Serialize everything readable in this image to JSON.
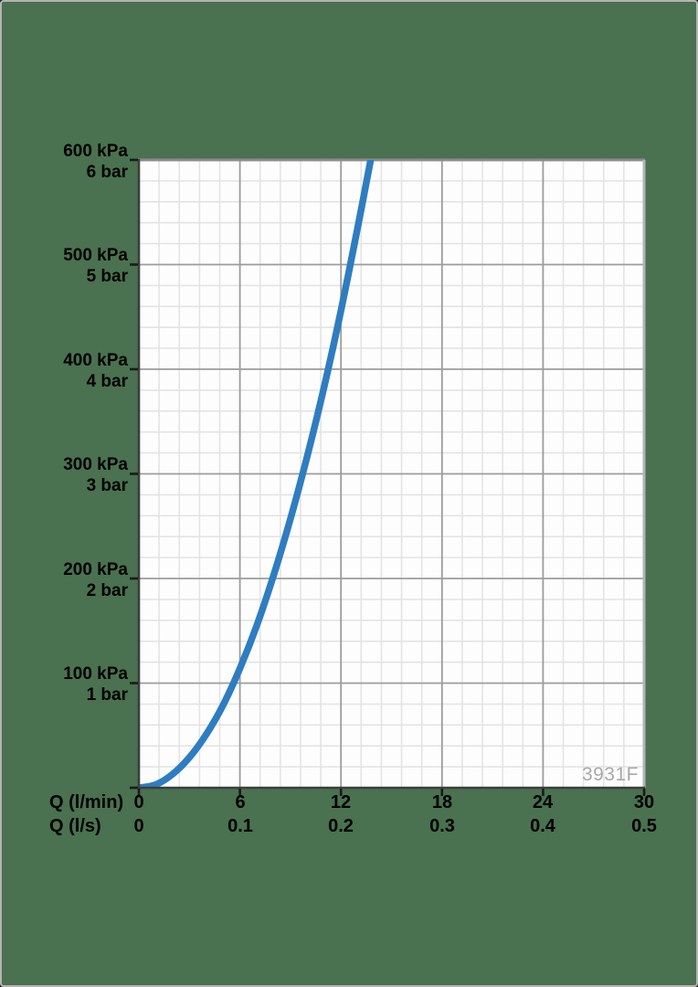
{
  "product_code": "3931F",
  "chart_data": {
    "type": "line",
    "title": "",
    "description_visible_text_only": "",
    "x_axis": {
      "row1_label": "Q (l/min)",
      "row2_label": "Q (l/s)",
      "row1_ticks": [
        "0",
        "6",
        "12",
        "18",
        "24",
        "30"
      ],
      "row2_ticks": [
        "0",
        "0.1",
        "0.2",
        "0.3",
        "0.4",
        "0.5"
      ],
      "range_lmin": [
        0,
        30
      ],
      "major_step_lmin": 6,
      "minor_per_major": 5
    },
    "y_axis": {
      "tick_labels": [
        {
          "kpa": "600 kPa",
          "bar": "6 bar"
        },
        {
          "kpa": "500 kPa",
          "bar": "5 bar"
        },
        {
          "kpa": "400 kPa",
          "bar": "4 bar"
        },
        {
          "kpa": "300 kPa",
          "bar": "3 bar"
        },
        {
          "kpa": "200 kPa",
          "bar": "2 bar"
        },
        {
          "kpa": "100 kPa",
          "bar": "1 bar"
        }
      ],
      "range_kpa": [
        0,
        600
      ],
      "major_step_kpa": 100,
      "minor_per_major": 5
    },
    "grid": {
      "minor": true,
      "major": true
    },
    "legend": {
      "visible": false
    },
    "series": [
      {
        "name": "pressure-drop-curve",
        "points_q_lmin_vs_kpa": [
          [
            0,
            0
          ],
          [
            1,
            3
          ],
          [
            2,
            13
          ],
          [
            3,
            29
          ],
          [
            4,
            51
          ],
          [
            5,
            79
          ],
          [
            6,
            114
          ],
          [
            7,
            155
          ],
          [
            8,
            203
          ],
          [
            9,
            257
          ],
          [
            10,
            317
          ],
          [
            11,
            383
          ],
          [
            12,
            456
          ],
          [
            13,
            536
          ],
          [
            13.8,
            603
          ]
        ]
      }
    ],
    "colors": {
      "curve": "#2e7dc1",
      "background": "#4a7150",
      "plot_bg": "#fdfdfd",
      "major_grid": "#9c9c9c",
      "minor_grid": "#e4e4e4",
      "axis": "#3d3d3d",
      "tick": "#1a1a1a",
      "label": "#000000",
      "product_code": "#a8a8a8",
      "top_border": "#8c8c8c",
      "right_border": "#b3b3b3",
      "outer_border": "#b4b4b4"
    }
  }
}
